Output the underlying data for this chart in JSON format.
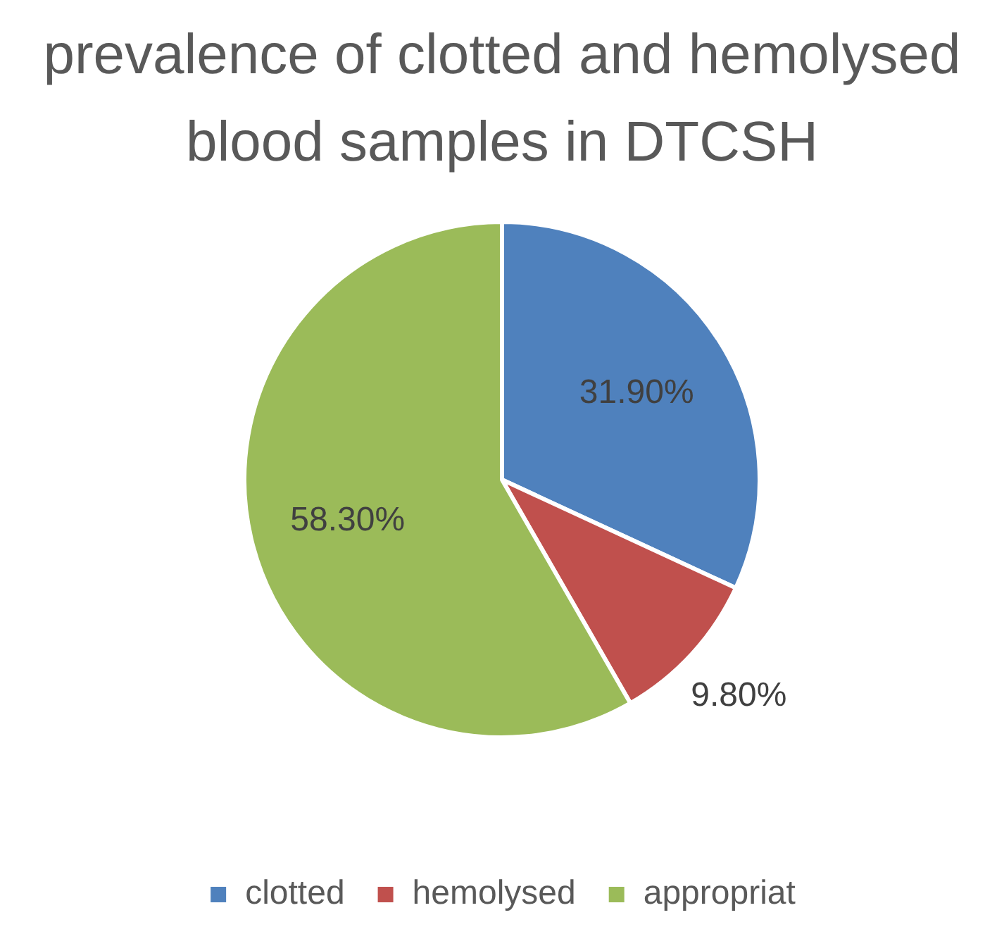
{
  "chart_data": {
    "type": "pie",
    "title": "prevalence of clotted and hemolysed blood samples in DTCSH",
    "categories": [
      "clotted",
      "hemolysed",
      "appropriat"
    ],
    "values": [
      31.9,
      9.8,
      58.3
    ],
    "colors": [
      "#4f81bd",
      "#c0504d",
      "#9bbb59"
    ],
    "value_labels": [
      "31.90%",
      "9.80%",
      "58.30%"
    ],
    "legend": "bottom"
  }
}
